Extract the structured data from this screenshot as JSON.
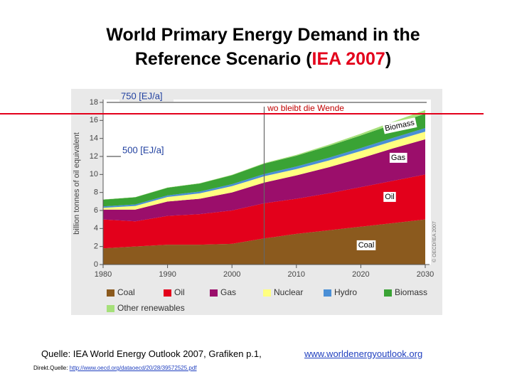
{
  "title_lines": [
    "World Primary Energy Demand in the",
    "Reference Scenario ("
  ],
  "title_highlight": "IEA 2007",
  "title_end": ")",
  "chart_data": {
    "type": "stacked-area",
    "ylabel": "billion tonnes of oil equivalent",
    "x": [
      1980,
      1985,
      1990,
      1995,
      2000,
      2005,
      2010,
      2015,
      2020,
      2025,
      2030
    ],
    "xlim": [
      1980,
      2030
    ],
    "xticks": [
      1980,
      1990,
      2000,
      2010,
      2020,
      2030
    ],
    "ylim": [
      0,
      18
    ],
    "yticks": [
      0,
      2,
      4,
      6,
      8,
      10,
      12,
      14,
      16,
      18
    ],
    "series": [
      {
        "name": "Coal",
        "color": "#8b5a1e",
        "values": [
          1.8,
          2.0,
          2.2,
          2.2,
          2.3,
          2.9,
          3.4,
          3.8,
          4.2,
          4.6,
          5.0
        ]
      },
      {
        "name": "Oil",
        "color": "#e3001b",
        "values": [
          3.2,
          2.8,
          3.2,
          3.4,
          3.7,
          3.9,
          3.9,
          4.1,
          4.4,
          4.7,
          5.0
        ]
      },
      {
        "name": "Gas",
        "color": "#9b0e6b",
        "values": [
          1.1,
          1.3,
          1.6,
          1.7,
          2.0,
          2.3,
          2.6,
          2.9,
          3.2,
          3.6,
          3.9
        ]
      },
      {
        "name": "Nuclear",
        "color": "#ffff80",
        "values": [
          0.2,
          0.4,
          0.5,
          0.6,
          0.7,
          0.7,
          0.7,
          0.75,
          0.8,
          0.8,
          0.85
        ]
      },
      {
        "name": "Hydro",
        "color": "#4a8fd6",
        "values": [
          0.15,
          0.17,
          0.18,
          0.2,
          0.22,
          0.25,
          0.28,
          0.3,
          0.33,
          0.36,
          0.4
        ]
      },
      {
        "name": "Biomass",
        "color": "#3aa335",
        "values": [
          0.75,
          0.8,
          0.85,
          0.9,
          1.0,
          1.15,
          1.2,
          1.3,
          1.4,
          1.5,
          1.6
        ]
      },
      {
        "name": "Other renewables",
        "color": "#a6e07a",
        "values": [
          0.02,
          0.02,
          0.03,
          0.03,
          0.05,
          0.06,
          0.1,
          0.15,
          0.2,
          0.3,
          0.4
        ]
      }
    ],
    "reference_line_x": 2005,
    "area_labels": [
      "Biomass",
      "Gas",
      "Oil",
      "Coal"
    ],
    "copyright": "© OECD/IEA 2007",
    "annotations": [
      "750 [EJ/a]",
      "500 [EJ/a]",
      "wo bleibt die Wende"
    ]
  },
  "source": "Quelle: IEA World Energy Outlook 2007, Grafiken p.1,",
  "source_link": "www.worldenergyoutlook.org",
  "direct_source_label": "Direkt.Quelle:",
  "direct_source_url": "http://www.oecd.org/dataoecd/20/28/39572525.pdf"
}
